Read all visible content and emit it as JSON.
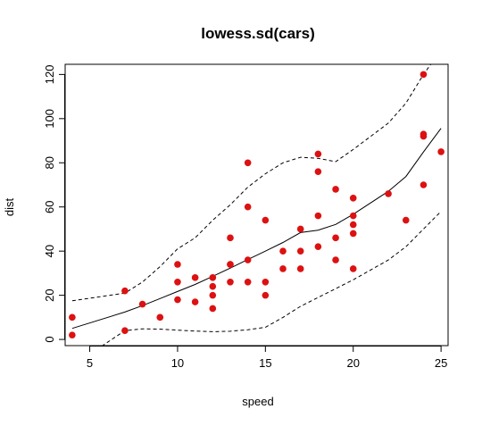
{
  "chart_data": {
    "type": "scatter",
    "title": "lowess.sd(cars)",
    "xlabel": "speed",
    "ylabel": "dist",
    "xlim": [
      3.6,
      25.4
    ],
    "ylim": [
      -2.8,
      124.6
    ],
    "xticks": [
      5,
      10,
      15,
      20,
      25
    ],
    "yticks": [
      0,
      20,
      40,
      60,
      80,
      100,
      120
    ],
    "grid": false,
    "legend": "none",
    "point_color": "#dd1111",
    "points": [
      [
        4,
        2
      ],
      [
        4,
        10
      ],
      [
        7,
        4
      ],
      [
        7,
        22
      ],
      [
        8,
        16
      ],
      [
        9,
        10
      ],
      [
        10,
        18
      ],
      [
        10,
        26
      ],
      [
        10,
        34
      ],
      [
        11,
        17
      ],
      [
        11,
        28
      ],
      [
        12,
        14
      ],
      [
        12,
        20
      ],
      [
        12,
        24
      ],
      [
        12,
        28
      ],
      [
        13,
        26
      ],
      [
        13,
        34
      ],
      [
        13,
        34
      ],
      [
        13,
        46
      ],
      [
        14,
        26
      ],
      [
        14,
        36
      ],
      [
        14,
        60
      ],
      [
        14,
        80
      ],
      [
        15,
        20
      ],
      [
        15,
        26
      ],
      [
        15,
        54
      ],
      [
        16,
        32
      ],
      [
        16,
        40
      ],
      [
        17,
        32
      ],
      [
        17,
        40
      ],
      [
        17,
        50
      ],
      [
        18,
        42
      ],
      [
        18,
        56
      ],
      [
        18,
        76
      ],
      [
        18,
        84
      ],
      [
        19,
        36
      ],
      [
        19,
        46
      ],
      [
        19,
        68
      ],
      [
        20,
        32
      ],
      [
        20,
        48
      ],
      [
        20,
        52
      ],
      [
        20,
        56
      ],
      [
        20,
        64
      ],
      [
        22,
        66
      ],
      [
        23,
        54
      ],
      [
        24,
        70
      ],
      [
        24,
        92
      ],
      [
        24,
        93
      ],
      [
        24,
        120
      ],
      [
        25,
        85
      ]
    ],
    "series": [
      {
        "style": "solid",
        "x": [
          4,
          7,
          8,
          9,
          10,
          11,
          12,
          13,
          14,
          15,
          16,
          17,
          18,
          19,
          20,
          22,
          23,
          24,
          25
        ],
        "y": [
          5,
          12.4,
          15.3,
          18.5,
          21.7,
          24.9,
          28.6,
          32.3,
          36.2,
          40.0,
          43.9,
          48.4,
          49.5,
          52.1,
          56.7,
          67.1,
          73.8,
          84.9,
          95.6
        ]
      },
      {
        "style": "dashed",
        "x": [
          4,
          7,
          8,
          9,
          10,
          11,
          12,
          13,
          14,
          15,
          16,
          17,
          18,
          19,
          20,
          22,
          23,
          24,
          25
        ],
        "y": [
          17.5,
          21,
          26,
          33,
          41,
          46,
          54,
          61,
          69,
          75,
          80,
          82.5,
          82,
          80.5,
          86,
          98,
          107,
          120,
          131
        ]
      },
      {
        "style": "dashed",
        "x": [
          4,
          5.5,
          7,
          8,
          9,
          10,
          11,
          12,
          13,
          14,
          15,
          16,
          17,
          18,
          19,
          20,
          22,
          23,
          24,
          25
        ],
        "y": [
          -7.5,
          -4,
          4,
          4.8,
          4.7,
          4.2,
          3.8,
          3.5,
          3.7,
          4.4,
          5.5,
          10,
          15,
          19,
          23,
          27,
          36,
          42,
          50,
          58
        ]
      }
    ]
  }
}
